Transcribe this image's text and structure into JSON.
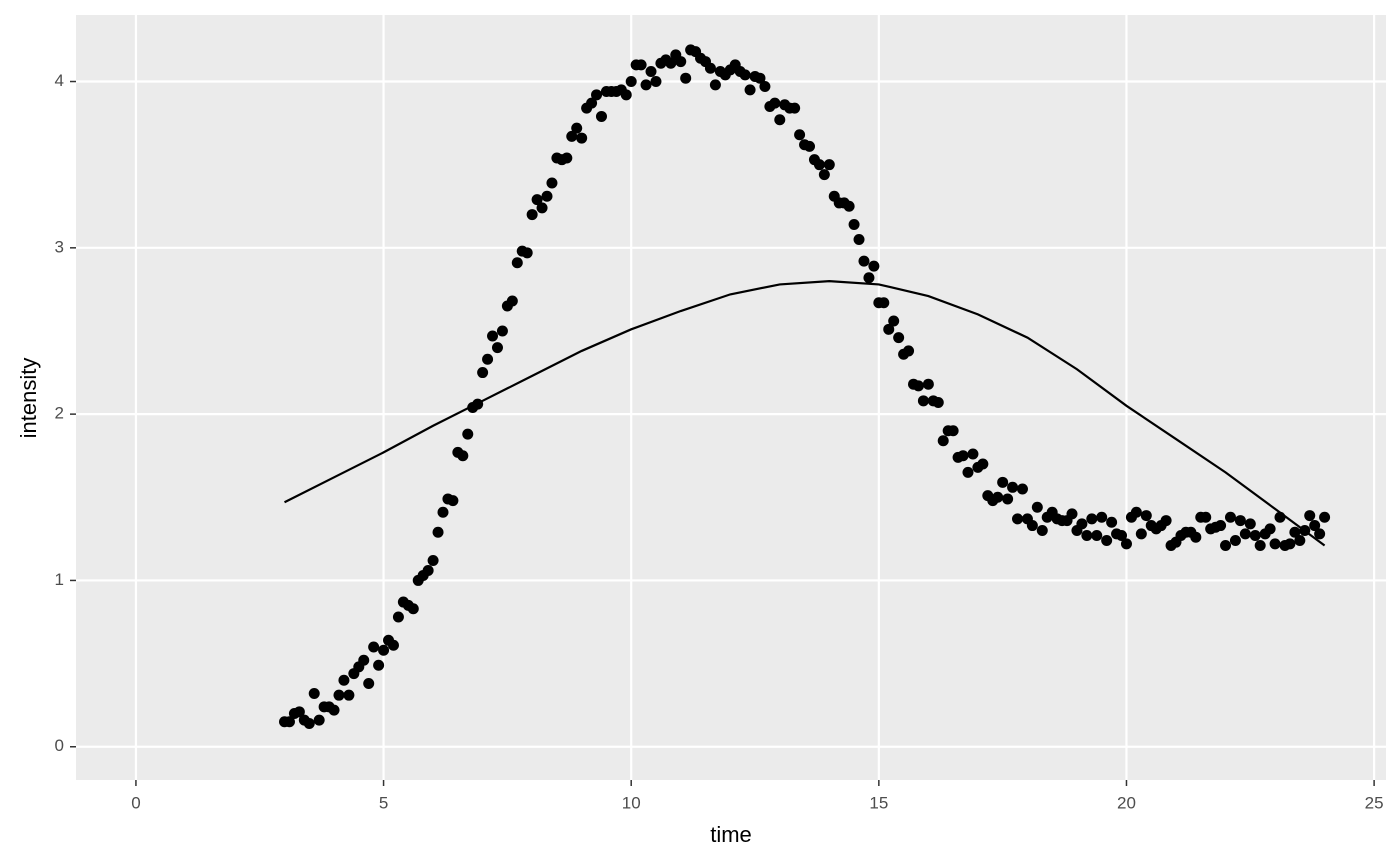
{
  "chart_data": {
    "type": "scatter",
    "x_label": "time",
    "y_label": "intensity",
    "xlim": [
      -1.21,
      25.24
    ],
    "ylim": [
      -0.2,
      4.4
    ],
    "xticks": [
      0,
      5,
      10,
      15,
      20,
      25
    ],
    "yticks": [
      0,
      1,
      2,
      3,
      4
    ],
    "grid": true,
    "color": "#000000",
    "x": [
      3,
      3.1,
      3.2,
      3.3,
      3.4,
      3.5,
      3.6,
      3.7,
      3.8,
      3.9,
      4,
      4.1,
      4.2,
      4.3,
      4.4,
      4.5,
      4.6,
      4.7,
      4.8,
      4.9,
      5,
      5.1,
      5.2,
      5.3,
      5.4,
      5.5,
      5.6,
      5.7,
      5.8,
      5.9,
      6,
      6.1,
      6.2,
      6.3,
      6.4,
      6.5,
      6.6,
      6.7,
      6.8,
      6.9,
      7,
      7.1,
      7.2,
      7.3,
      7.4,
      7.5,
      7.6,
      7.7,
      7.8,
      7.9,
      8,
      8.1,
      8.2,
      8.3,
      8.4,
      8.5,
      8.6,
      8.7,
      8.8,
      8.9,
      9,
      9.1,
      9.2,
      9.3,
      9.4,
      9.5,
      9.6,
      9.7,
      9.8,
      9.9,
      10,
      10.1,
      10.2,
      10.3,
      10.4,
      10.5,
      10.6,
      10.7,
      10.8,
      10.9,
      11,
      11.1,
      11.2,
      11.3,
      11.4,
      11.5,
      11.6,
      11.7,
      11.8,
      11.9,
      12,
      12.1,
      12.2,
      12.3,
      12.4,
      12.5,
      12.6,
      12.7,
      12.8,
      12.9,
      13,
      13.1,
      13.2,
      13.3,
      13.4,
      13.5,
      13.6,
      13.7,
      13.8,
      13.9,
      14,
      14.1,
      14.2,
      14.3,
      14.4,
      14.5,
      14.6,
      14.7,
      14.8,
      14.9,
      15,
      15.1,
      15.2,
      15.3,
      15.4,
      15.5,
      15.6,
      15.7,
      15.8,
      15.9,
      16,
      16.1,
      16.2,
      16.3,
      16.4,
      16.5,
      16.6,
      16.7,
      16.8,
      16.9,
      17,
      17.1,
      17.2,
      17.3,
      17.4,
      17.5,
      17.6,
      17.7,
      17.8,
      17.9,
      18,
      18.1,
      18.2,
      18.3,
      18.4,
      18.5,
      18.6,
      18.7,
      18.8,
      18.9,
      19,
      19.1,
      19.2,
      19.3,
      19.4,
      19.5,
      19.6,
      19.7,
      19.8,
      19.9,
      20,
      20.1,
      20.2,
      20.3,
      20.4,
      20.5,
      20.6,
      20.7,
      20.8,
      20.9,
      21,
      21.1,
      21.2,
      21.3,
      21.4,
      21.5,
      21.6,
      21.7,
      21.8,
      21.9,
      22,
      22.1,
      22.2,
      22.3,
      22.4,
      22.5,
      22.6,
      22.7,
      22.8,
      22.9,
      23,
      23.1,
      23.2,
      23.3,
      23.4,
      23.5,
      23.6,
      23.7,
      23.8,
      23.9,
      24
    ],
    "y": [
      0.15,
      0.15,
      0.2,
      0.21,
      0.16,
      0.14,
      0.32,
      0.16,
      0.24,
      0.24,
      0.22,
      0.31,
      0.4,
      0.31,
      0.44,
      0.48,
      0.52,
      0.38,
      0.6,
      0.49,
      0.58,
      0.64,
      0.61,
      0.78,
      0.87,
      0.85,
      0.83,
      1.0,
      1.03,
      1.06,
      1.12,
      1.29,
      1.41,
      1.49,
      1.48,
      1.77,
      1.75,
      1.88,
      2.04,
      2.06,
      2.25,
      2.33,
      2.47,
      2.4,
      2.5,
      2.65,
      2.68,
      2.91,
      2.98,
      2.97,
      3.2,
      3.29,
      3.24,
      3.31,
      3.39,
      3.54,
      3.53,
      3.54,
      3.67,
      3.72,
      3.66,
      3.84,
      3.87,
      3.92,
      3.79,
      3.94,
      3.94,
      3.94,
      3.95,
      3.92,
      4.0,
      4.1,
      4.1,
      3.98,
      4.06,
      4.0,
      4.11,
      4.13,
      4.11,
      4.16,
      4.12,
      4.02,
      4.19,
      4.18,
      4.14,
      4.12,
      4.08,
      3.98,
      4.06,
      4.04,
      4.07,
      4.1,
      4.06,
      4.04,
      3.95,
      4.03,
      4.02,
      3.97,
      3.85,
      3.87,
      3.77,
      3.86,
      3.84,
      3.84,
      3.68,
      3.62,
      3.61,
      3.53,
      3.5,
      3.44,
      3.5,
      3.31,
      3.27,
      3.27,
      3.25,
      3.14,
      3.05,
      2.92,
      2.82,
      2.89,
      2.67,
      2.67,
      2.51,
      2.56,
      2.46,
      2.36,
      2.38,
      2.18,
      2.17,
      2.08,
      2.18,
      2.08,
      2.07,
      1.84,
      1.9,
      1.9,
      1.74,
      1.75,
      1.65,
      1.76,
      1.68,
      1.7,
      1.51,
      1.48,
      1.5,
      1.59,
      1.49,
      1.56,
      1.37,
      1.55,
      1.37,
      1.33,
      1.44,
      1.3,
      1.38,
      1.41,
      1.37,
      1.36,
      1.36,
      1.4,
      1.3,
      1.34,
      1.27,
      1.37,
      1.27,
      1.38,
      1.24,
      1.35,
      1.28,
      1.27,
      1.22,
      1.38,
      1.41,
      1.28,
      1.39,
      1.33,
      1.31,
      1.33,
      1.36,
      1.21,
      1.23,
      1.27,
      1.29,
      1.29,
      1.26,
      1.38,
      1.38,
      1.31,
      1.32,
      1.33,
      1.21,
      1.38,
      1.24,
      1.36,
      1.28,
      1.34,
      1.27,
      1.21,
      1.28,
      1.31,
      1.22,
      1.38,
      1.21,
      1.22,
      1.29,
      1.24,
      1.3,
      1.39,
      1.33,
      1.28,
      1.38
    ],
    "fit_line": {
      "type": "line",
      "color": "#000000",
      "x": [
        3,
        4,
        5,
        6,
        7,
        8,
        9,
        10,
        11,
        12,
        13,
        14,
        15,
        16,
        17,
        18,
        19,
        20,
        21,
        22,
        23,
        24
      ],
      "y": [
        1.47,
        1.62,
        1.77,
        1.93,
        2.08,
        2.23,
        2.38,
        2.51,
        2.62,
        2.72,
        2.78,
        2.8,
        2.78,
        2.71,
        2.6,
        2.46,
        2.27,
        2.05,
        1.85,
        1.65,
        1.43,
        1.21
      ]
    }
  }
}
